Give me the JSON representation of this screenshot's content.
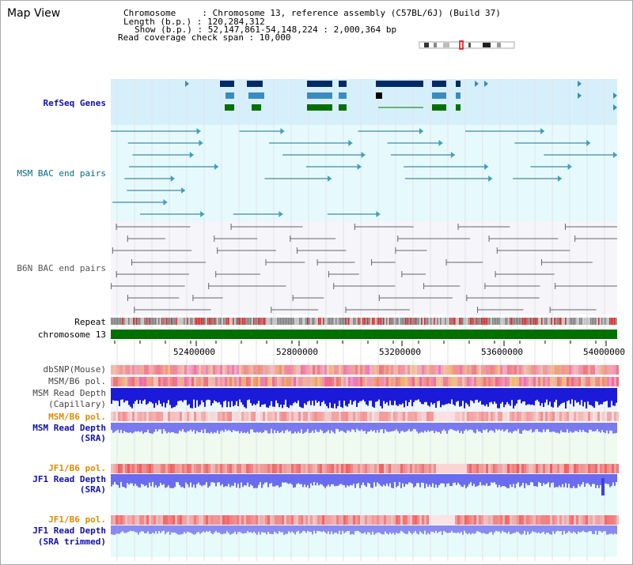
{
  "header": {
    "title": "Map View",
    "chromosome_line": "Chromosome     : Chromosome 13, reference assembly (C57BL/6J) (Build 37)",
    "length_line": "Length (b.p.) : 120,284,312",
    "show_line": "Show (b.p.) : 52,147,861-54,148,224 : 2,000,364 bp",
    "read_coverage_line": "Read coverage check span : 10,000"
  },
  "tracks": {
    "refseq": "RefSeq Genes",
    "msm_bac": "MSM BAC end pairs",
    "b6n_bac": "B6N BAC end pairs",
    "repeat": "Repeat",
    "chromosome": "chromosome 13",
    "dbsnp": "dbSNP(Mouse)",
    "msm_b6_pol_1": "MSM/B6 pol.",
    "msm_read_depth_cap_1": "MSM Read Depth",
    "msm_read_depth_cap_2": "(Capillary)",
    "msm_b6_pol_2": "MSM/B6 pol.",
    "msm_read_depth_sra_1": "MSM Read Depth",
    "msm_read_depth_sra_2": "(SRA)",
    "jf1_b6_pol_1": "JF1/B6 pol.",
    "jf1_read_depth_sra_1": "JF1 Read Depth",
    "jf1_read_depth_sra_2": "(SRA)",
    "jf1_b6_pol_2": "JF1/B6 pol.",
    "jf1_read_depth_trim_1": "JF1 Read Depth",
    "jf1_read_depth_trim_2": "(SRA trimmed)"
  },
  "axis": {
    "ticks": [
      "52400000",
      "52800000",
      "53200000",
      "53600000",
      "54000000"
    ]
  },
  "colors": {
    "refseq_bg": "#d6f0fb",
    "msm_bg": "#e6fafe",
    "b6n_bg": "#f5f5fa",
    "chromosome": "#007000",
    "gene_dark": "#002a66",
    "gene_mid": "#3a8cc0",
    "gene_green": "#007000",
    "snp_red": "#ee4444",
    "depth_blue": "#1a1ad8",
    "depth_sra": "#7a7af0",
    "title_blue": "#1010b0",
    "orange": "#e38b00"
  }
}
